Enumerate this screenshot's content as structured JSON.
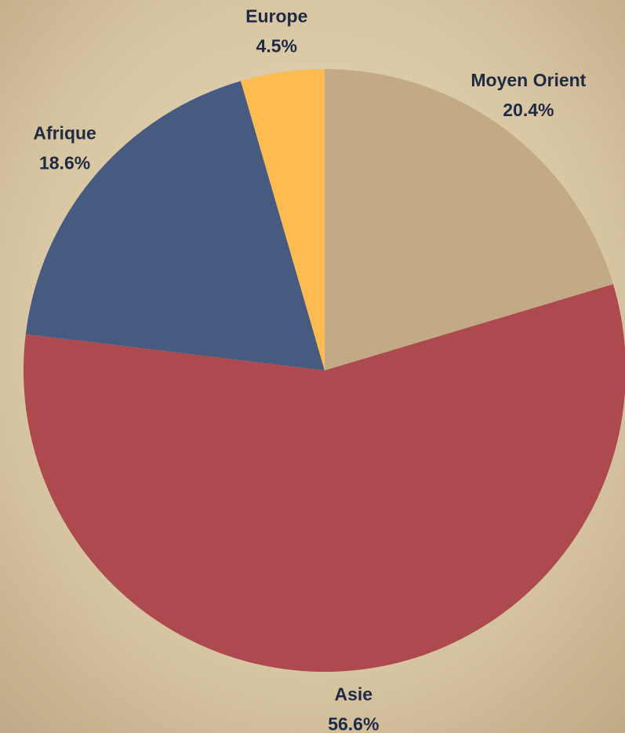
{
  "chart_data": {
    "type": "pie",
    "categories": [
      "Moyen Orient",
      "Asie",
      "Afrique",
      "Europe"
    ],
    "values": [
      20.4,
      56.6,
      18.6,
      4.5
    ],
    "value_labels": [
      "20.4%",
      "56.6%",
      "18.6%",
      "4.5%"
    ],
    "colors": [
      "#c2aa87",
      "#ad4a50",
      "#475a80",
      "#fdbb52"
    ]
  }
}
